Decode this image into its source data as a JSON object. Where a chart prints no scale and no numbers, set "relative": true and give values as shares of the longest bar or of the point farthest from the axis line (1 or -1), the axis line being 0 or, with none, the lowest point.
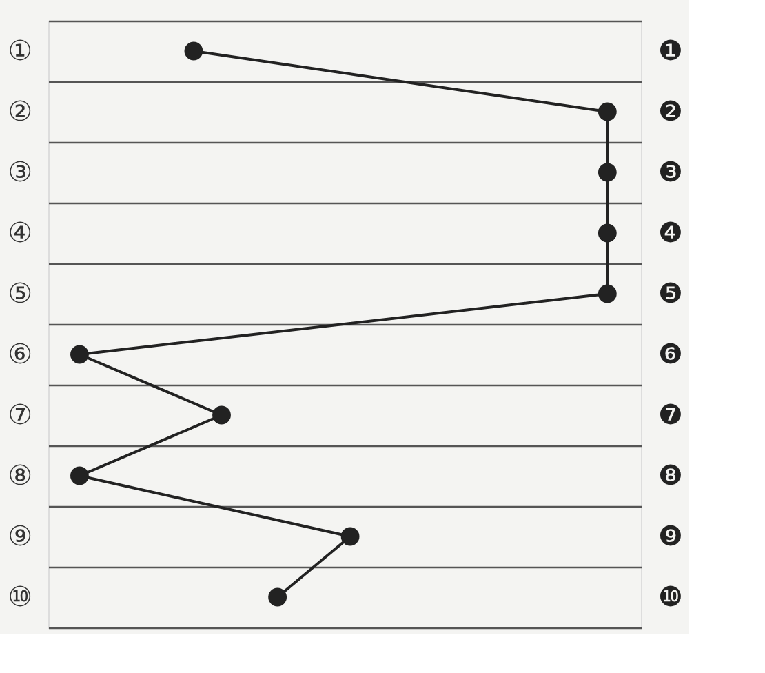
{
  "chart_data": {
    "type": "line",
    "relative": true,
    "orientation": "horizontal",
    "categories": [
      "①",
      "②",
      "③",
      "④",
      "⑤",
      "⑥",
      "⑦",
      "⑧",
      "⑨",
      "⑩"
    ],
    "y2_categories": [
      "❶",
      "❷",
      "❸",
      "❹",
      "❺",
      "❻",
      "❼",
      "❽",
      "❾",
      "❿"
    ],
    "series": [
      {
        "color": "#222222",
        "values": [
          0.26,
          1,
          1,
          1,
          1,
          0.056,
          0.31,
          0.056,
          0.54,
          0.41
        ]
      }
    ],
    "grid": "y",
    "marker": "circle",
    "line_style": "solid"
  }
}
